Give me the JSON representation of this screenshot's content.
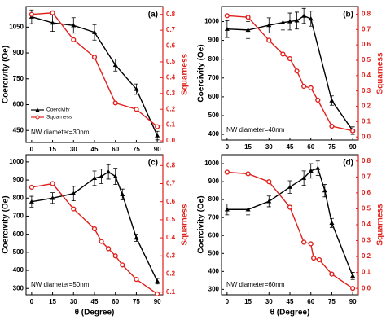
{
  "chart_data": [
    {
      "type": "line",
      "title": "(a)",
      "annotation": "NW diameter=30nm",
      "ylabel": "Coercivity (Oe)",
      "y2label": "Squarness",
      "xlim": [
        -4,
        94
      ],
      "xticks": [
        0,
        15,
        30,
        45,
        60,
        75,
        90
      ],
      "ylim": [
        380,
        1170
      ],
      "yticks": [
        450,
        600,
        750,
        900,
        1050
      ],
      "y2lim": [
        -0.01,
        0.85
      ],
      "y2ticks": [
        {
          "value": 0,
          "label": "0.0"
        },
        0.1,
        0.2,
        0.3,
        0.4,
        0.5,
        0.6,
        0.7,
        0.8
      ],
      "legend": "lower left",
      "series": [
        {
          "name": "Coercivity",
          "color": "#000000",
          "marker": "triangle",
          "x": [
            0,
            15,
            30,
            45,
            60,
            75,
            90
          ],
          "values": [
            1110,
            1075,
            1060,
            1020,
            830,
            690,
            420
          ],
          "errors": [
            40,
            50,
            45,
            45,
            35,
            30,
            25
          ]
        },
        {
          "name": "Squarness",
          "color": "#e0201c",
          "marker": "circle",
          "axis": "y2",
          "x": [
            0,
            15,
            30,
            45,
            60,
            75,
            90
          ],
          "values": [
            0.8,
            0.81,
            0.64,
            0.53,
            0.24,
            0.2,
            0.09
          ]
        }
      ]
    },
    {
      "type": "line",
      "title": "(b)",
      "annotation": "NW diameter=40nm",
      "ylabel": "Coercivity (Oe)",
      "y2label": "Squarness",
      "xlim": [
        -4,
        94
      ],
      "xticks": [
        0,
        15,
        30,
        45,
        60,
        75,
        90
      ],
      "ylim": [
        370,
        1080
      ],
      "yticks": [
        400,
        500,
        600,
        700,
        800,
        900,
        1000
      ],
      "y2lim": [
        -0.02,
        0.85
      ],
      "y2ticks": [
        {
          "value": 0,
          "label": "0.0"
        },
        0.1,
        0.2,
        0.3,
        0.4,
        0.5,
        0.6,
        0.7,
        0.8
      ],
      "series": [
        {
          "color": "#000000",
          "marker": "triangle",
          "x": [
            0,
            15,
            30,
            40,
            45,
            50,
            55,
            60,
            75,
            90
          ],
          "values": [
            960,
            955,
            980,
            995,
            1000,
            1005,
            1030,
            1015,
            580,
            420
          ],
          "errors": [
            45,
            45,
            40,
            40,
            45,
            45,
            40,
            40,
            25,
            20
          ]
        },
        {
          "color": "#e0201c",
          "marker": "circle",
          "axis": "y2",
          "x": [
            0,
            15,
            30,
            40,
            45,
            50,
            55,
            60,
            65,
            75,
            90
          ],
          "values": [
            0.79,
            0.78,
            0.63,
            0.54,
            0.51,
            0.43,
            0.33,
            0.32,
            0.24,
            0.07,
            0.04
          ]
        }
      ]
    },
    {
      "type": "line",
      "title": "(c)",
      "annotation": "NW diameter=50nm",
      "ylabel": "Coercivity (Oe)",
      "y2label": "Squarness",
      "xlabel": "θ (Degree)",
      "xlim": [
        -4,
        94
      ],
      "xticks": [
        0,
        15,
        30,
        45,
        60,
        75,
        90
      ],
      "ylim": [
        265,
        1040
      ],
      "yticks": [
        300,
        400,
        500,
        600,
        700,
        800,
        900,
        1000
      ],
      "y2lim": [
        0.085,
        0.86
      ],
      "y2ticks": [
        0.1,
        0.2,
        0.3,
        0.4,
        0.5,
        0.6,
        0.7,
        0.8
      ],
      "series": [
        {
          "color": "#000000",
          "marker": "triangle",
          "x": [
            0,
            15,
            30,
            45,
            50,
            55,
            60,
            65,
            75,
            90
          ],
          "values": [
            780,
            800,
            825,
            910,
            920,
            945,
            920,
            820,
            580,
            340
          ],
          "errors": [
            30,
            30,
            40,
            40,
            40,
            40,
            45,
            30,
            20,
            15
          ]
        },
        {
          "color": "#e0201c",
          "marker": "circle",
          "axis": "y2",
          "x": [
            0,
            15,
            30,
            45,
            50,
            55,
            60,
            65,
            75,
            90
          ],
          "values": [
            0.68,
            0.7,
            0.56,
            0.45,
            0.38,
            0.34,
            0.3,
            0.25,
            0.17,
            0.09
          ]
        }
      ]
    },
    {
      "type": "line",
      "title": "(d)",
      "annotation": "NW diameter=60nm",
      "ylabel": "Coercivity (Oe)",
      "y2label": "Squarness",
      "xlabel": "θ (Degree)",
      "xlim": [
        -4,
        94
      ],
      "xticks": [
        0,
        15,
        30,
        45,
        60,
        75,
        90
      ],
      "ylim": [
        270,
        1050
      ],
      "yticks": [
        300,
        400,
        500,
        600,
        700,
        800,
        900,
        1000
      ],
      "y2lim": [
        -0.04,
        0.84
      ],
      "y2ticks": [
        {
          "value": 0,
          "label": "0.0"
        },
        0.1,
        0.2,
        0.3,
        0.4,
        0.5,
        0.6,
        0.7,
        0.8
      ],
      "series": [
        {
          "color": "#000000",
          "marker": "triangle",
          "x": [
            0,
            15,
            30,
            45,
            55,
            60,
            65,
            70,
            75,
            90
          ],
          "values": [
            745,
            745,
            790,
            870,
            920,
            960,
            975,
            850,
            670,
            375
          ],
          "errors": [
            30,
            30,
            30,
            35,
            40,
            40,
            40,
            35,
            25,
            20
          ]
        },
        {
          "color": "#e0201c",
          "marker": "circle",
          "axis": "y2",
          "x": [
            0,
            15,
            30,
            45,
            55,
            60,
            62,
            66,
            75,
            90
          ],
          "values": [
            0.73,
            0.72,
            0.67,
            0.51,
            0.29,
            0.28,
            0.19,
            0.18,
            0.09,
            0.0
          ]
        }
      ]
    }
  ]
}
